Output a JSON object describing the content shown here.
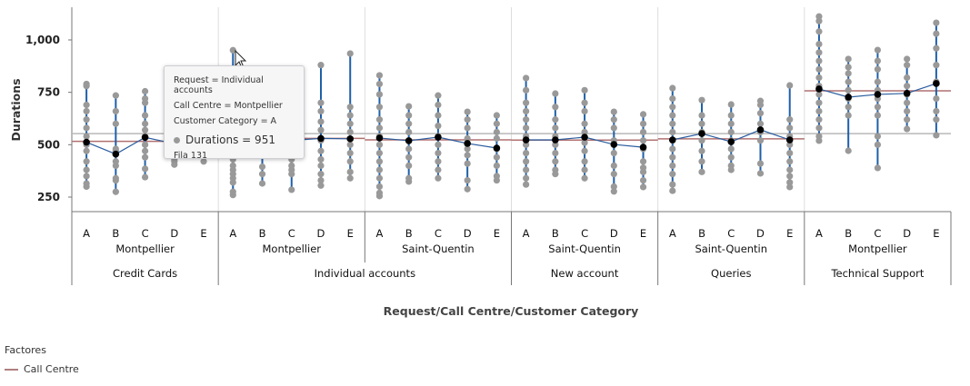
{
  "chart_data": {
    "type": "variability",
    "ylabel": "Durations",
    "xlabel": "Request/Call Centre/Customer Category",
    "ylim": [
      180,
      1150
    ],
    "yticks": [
      250,
      500,
      750,
      "1,000"
    ],
    "ytick_values": [
      250,
      500,
      750,
      1000
    ],
    "grand_mean": 553,
    "colors": {
      "points": "#999999",
      "range": "#1f5fa8",
      "mean": "#000000",
      "mean_line": "#2a5d9f",
      "centre_mean": "#b07070",
      "grand_mean": "#b8b8b8"
    },
    "cells": [
      {
        "request": "Credit Cards",
        "centre": "Montpellier",
        "centre_mean": 516,
        "groups": [
          {
            "cat": "A",
            "mean": 512,
            "points": [
              300,
              315,
              350,
              380,
              420,
              470,
              500,
              540,
              580,
              620,
              660,
              690,
              780,
              790
            ]
          },
          {
            "cat": "B",
            "mean": 455,
            "points": [
              275,
              330,
              340,
              400,
              420,
              470,
              480,
              600,
              660,
              735
            ]
          },
          {
            "cat": "C",
            "mean": 535,
            "points": [
              345,
              385,
              440,
              470,
              500,
              540,
              570,
              600,
              640,
              700,
              720,
              755
            ]
          },
          {
            "cat": "D",
            "mean": 505,
            "points": [
              405,
              420,
              430,
              470,
              520,
              560,
              600
            ]
          },
          {
            "cat": "E",
            "mean": 520,
            "points": [
              420,
              480,
              540,
              580,
              620
            ]
          }
        ]
      },
      {
        "request": "Individual accounts",
        "centre": "Montpellier",
        "centre_mean": 530,
        "groups": [
          {
            "cat": "A",
            "mean": 530,
            "points": [
              260,
              275,
              320,
              340,
              360,
              380,
              400,
              430,
              460,
              500,
              540,
              951
            ]
          },
          {
            "cat": "B",
            "mean": 525,
            "points": [
              315,
              360,
              395,
              450,
              520,
              560
            ]
          },
          {
            "cat": "C",
            "mean": 520,
            "points": [
              285,
              360,
              380,
              400,
              430,
              470,
              520
            ]
          },
          {
            "cat": "D",
            "mean": 530,
            "points": [
              305,
              330,
              360,
              400,
              430,
              470,
              520,
              570,
              610,
              660,
              700,
              880
            ]
          },
          {
            "cat": "E",
            "mean": 528,
            "points": [
              340,
              370,
              420,
              460,
              500,
              560,
              600,
              640,
              680,
              935
            ]
          }
        ]
      },
      {
        "request": "Individual accounts",
        "centre": "Saint-Quentin",
        "centre_mean": 523,
        "groups": [
          {
            "cat": "A",
            "mean": 532,
            "points": [
              255,
              270,
              300,
              340,
              380,
              420,
              460,
              500,
              540,
              580,
              620,
              680,
              740,
              790,
              831
            ]
          },
          {
            "cat": "B",
            "mean": 519,
            "points": [
              324,
              340,
              400,
              440,
              480,
              520,
              560,
              600,
              640,
              683
            ]
          },
          {
            "cat": "C",
            "mean": 536,
            "points": [
              340,
              380,
              420,
              460,
              500,
              540,
              590,
              640,
              690,
              735
            ]
          },
          {
            "cat": "D",
            "mean": 506,
            "points": [
              288,
              330,
              410,
              450,
              480,
              530,
              580,
              620,
              657
            ]
          },
          {
            "cat": "E",
            "mean": 484,
            "points": [
              330,
              350,
              400,
              440,
              480,
              530,
              560,
              600,
              640
            ]
          }
        ]
      },
      {
        "request": "New account",
        "centre": "Saint-Quentin",
        "centre_mean": 522,
        "groups": [
          {
            "cat": "A",
            "mean": 523,
            "points": [
              310,
              340,
              380,
              420,
              460,
              500,
              540,
              580,
              620,
              660,
              700,
              760,
              818
            ]
          },
          {
            "cat": "B",
            "mean": 523,
            "points": [
              360,
              380,
              420,
              460,
              500,
              540,
              580,
              620,
              680,
              744
            ]
          },
          {
            "cat": "C",
            "mean": 536,
            "points": [
              340,
              380,
              420,
              470,
              510,
              560,
              600,
              660,
              700,
              760
            ]
          },
          {
            "cat": "D",
            "mean": 501,
            "points": [
              277,
              300,
              360,
              400,
              460,
              520,
              580,
              620,
              657
            ]
          },
          {
            "cat": "E",
            "mean": 488,
            "points": [
              298,
              330,
              370,
              390,
              420,
              480,
              520,
              560,
              600,
              645
            ]
          }
        ]
      },
      {
        "request": "Queries",
        "centre": "Saint-Quentin",
        "centre_mean": 528,
        "groups": [
          {
            "cat": "A",
            "mean": 523,
            "points": [
              280,
              310,
              360,
              400,
              440,
              480,
              520,
              560,
              600,
              640,
              680,
              720,
              770
            ]
          },
          {
            "cat": "B",
            "mean": 553,
            "points": [
              370,
              420,
              470,
              520,
              560,
              600,
              640,
              713
            ]
          },
          {
            "cat": "C",
            "mean": 514,
            "points": [
              380,
              400,
              440,
              480,
              520,
              560,
              600,
              640,
              692
            ]
          },
          {
            "cat": "D",
            "mean": 571,
            "points": [
              363,
              410,
              520,
              560,
              600,
              650,
              690,
              709
            ]
          },
          {
            "cat": "E",
            "mean": 523,
            "points": [
              298,
              320,
              350,
              380,
              420,
              460,
              500,
              540,
              580,
              620,
              783
            ]
          }
        ]
      },
      {
        "request": "Technical Support",
        "centre": "Montpellier",
        "centre_mean": 757,
        "groups": [
          {
            "cat": "A",
            "mean": 766,
            "points": [
              519,
              540,
              580,
              620,
              660,
              700,
              740,
              780,
              820,
              860,
              900,
              940,
              980,
              1040,
              1090,
              1112
            ]
          },
          {
            "cat": "B",
            "mean": 727,
            "points": [
              471,
              640,
              680,
              720,
              760,
              800,
              840,
              870,
              909
            ]
          },
          {
            "cat": "C",
            "mean": 740,
            "points": [
              389,
              500,
              540,
              640,
              680,
              720,
              760,
              800,
              860,
              900,
              952
            ]
          },
          {
            "cat": "D",
            "mean": 745,
            "points": [
              575,
              620,
              660,
              700,
              740,
              780,
              820,
              880,
              909
            ]
          },
          {
            "cat": "E",
            "mean": 792,
            "points": [
              545,
              620,
              660,
              720,
              800,
              880,
              960,
              1030,
              1082
            ]
          }
        ]
      }
    ],
    "requests": [
      "Credit Cards",
      "Individual accounts",
      "New account",
      "Queries",
      "Technical Support"
    ]
  },
  "tooltip": {
    "line1": "Request = Individual accounts",
    "line2": "Call Centre = Montpellier",
    "line3": "Customer Category = A",
    "value": "Durations = 951",
    "row": "Fila 131"
  },
  "legend": {
    "title": "Factores",
    "item": "Call Centre"
  }
}
